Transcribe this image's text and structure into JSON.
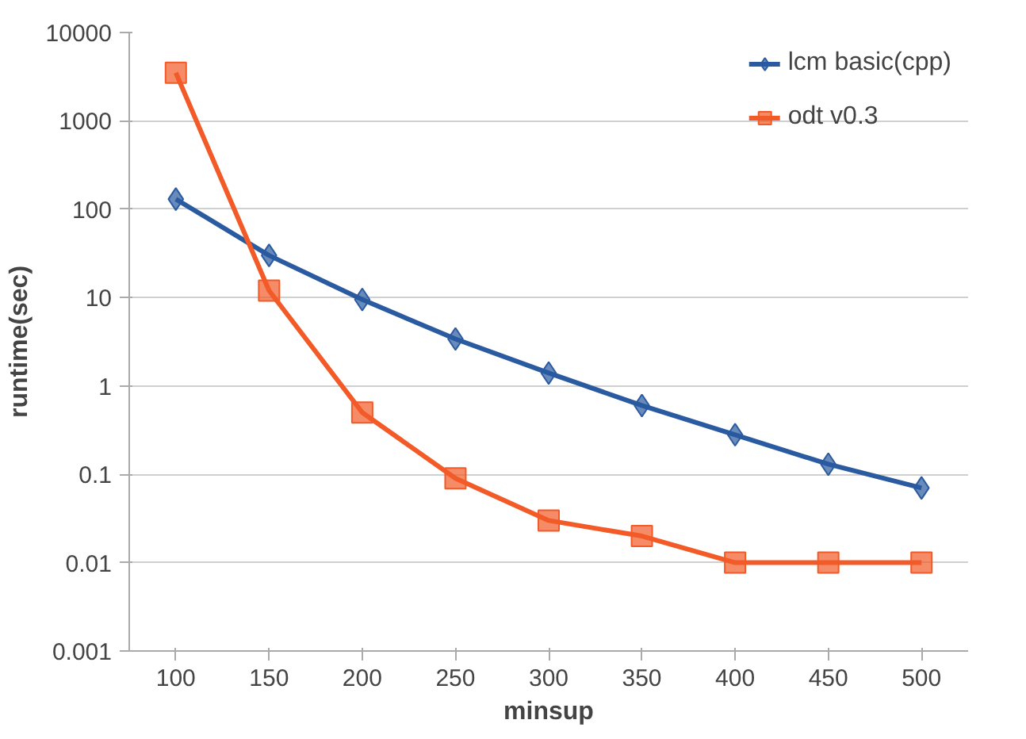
{
  "chart_data": {
    "type": "line",
    "xlabel": "minsup",
    "ylabel": "runtime(sec)",
    "categories": [
      "100",
      "150",
      "200",
      "250",
      "300",
      "350",
      "400",
      "450",
      "500"
    ],
    "series": [
      {
        "name": "lcm basic(cpp)",
        "color": "#2a5aa0",
        "marker": "diamond",
        "values": [
          130,
          30,
          9.5,
          3.4,
          1.4,
          0.6,
          0.28,
          0.13,
          0.07
        ]
      },
      {
        "name": "odt v0.3",
        "color": "#f25a28",
        "marker": "square",
        "values": [
          3500,
          12,
          0.5,
          0.09,
          0.03,
          0.02,
          0.01,
          0.01,
          0.01
        ]
      }
    ],
    "log": "y",
    "ylim": [
      0.001,
      10000
    ],
    "yticks": [
      0.001,
      0.01,
      0.1,
      1,
      10,
      100,
      1000,
      10000
    ],
    "grid": "y",
    "legend": "top right",
    "line_style": "solid"
  }
}
